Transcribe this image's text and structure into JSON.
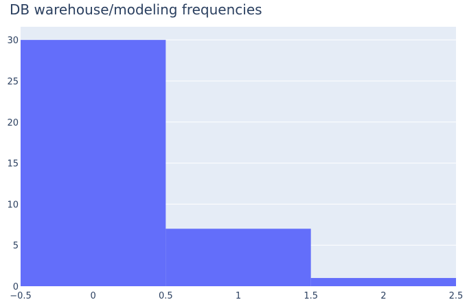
{
  "chart_data": {
    "type": "bar",
    "title": "DB warehouse/modeling frequencies",
    "xlabel": "",
    "ylabel": "",
    "bins": [
      {
        "x0": -0.5,
        "x1": 0.5,
        "value": 30
      },
      {
        "x0": 0.5,
        "x1": 1.5,
        "value": 7
      },
      {
        "x0": 1.5,
        "x1": 2.5,
        "value": 1
      }
    ],
    "xlim": [
      -0.5,
      2.5
    ],
    "ylim": [
      0,
      31.6
    ],
    "x_ticks": [
      -0.5,
      0,
      0.5,
      1,
      1.5,
      2,
      2.5
    ],
    "x_tick_labels": [
      "−0.5",
      "0",
      "0.5",
      "1",
      "1.5",
      "2",
      "2.5"
    ],
    "y_ticks": [
      0,
      5,
      10,
      15,
      20,
      25,
      30
    ],
    "y_tick_labels": [
      "0",
      "5",
      "10",
      "15",
      "20",
      "25",
      "30"
    ],
    "grid": true,
    "colors": {
      "bar": "#636efa",
      "plot_background": "#e5ecf6",
      "grid": "#ffffff",
      "text": "#2a3f5f"
    }
  }
}
